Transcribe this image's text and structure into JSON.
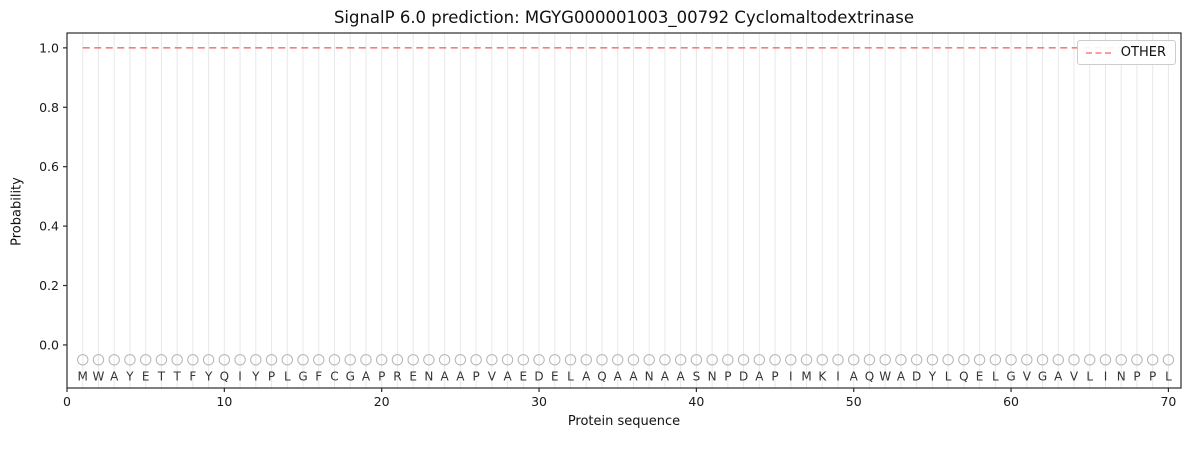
{
  "colors": {
    "other_line": "#f08080",
    "grid": "#e8e8e8",
    "marker": "#b5b5b5",
    "letters": "#333333",
    "axis": "#2b2b2b",
    "text": "#1a1a1a",
    "legend_border": "#cccccc"
  },
  "chart_data": {
    "type": "line",
    "title": "SignalP 6.0 prediction: MGYG000001003_00792 Cyclomaltodextrinase",
    "xlabel": "Protein sequence",
    "ylabel": "Probability",
    "xlim": [
      0,
      70.8
    ],
    "ylim": [
      -0.145,
      1.05
    ],
    "xticks": [
      0,
      10,
      20,
      30,
      40,
      50,
      60,
      70
    ],
    "yticks": [
      0.0,
      0.2,
      0.4,
      0.6,
      0.8,
      1.0
    ],
    "grid": "vertical line at every residue position",
    "legend": {
      "position": "upper right",
      "entries": [
        "OTHER"
      ]
    },
    "series": [
      {
        "name": "OTHER",
        "linestyle": "dashed",
        "color": "#f08080",
        "x": [
          1,
          2,
          3,
          4,
          5,
          6,
          7,
          8,
          9,
          10,
          11,
          12,
          13,
          14,
          15,
          16,
          17,
          18,
          19,
          20,
          21,
          22,
          23,
          24,
          25,
          26,
          27,
          28,
          29,
          30,
          31,
          32,
          33,
          34,
          35,
          36,
          37,
          38,
          39,
          40,
          41,
          42,
          43,
          44,
          45,
          46,
          47,
          48,
          49,
          50,
          51,
          52,
          53,
          54,
          55,
          56,
          57,
          58,
          59,
          60,
          61,
          62,
          63,
          64,
          65,
          66,
          67,
          68,
          69,
          70
        ],
        "values": [
          1,
          1,
          1,
          1,
          1,
          1,
          1,
          1,
          1,
          1,
          1,
          1,
          1,
          1,
          1,
          1,
          1,
          1,
          1,
          1,
          1,
          1,
          1,
          1,
          1,
          1,
          1,
          1,
          1,
          1,
          1,
          1,
          1,
          1,
          1,
          1,
          1,
          1,
          1,
          1,
          1,
          1,
          1,
          1,
          1,
          1,
          1,
          1,
          1,
          1,
          1,
          1,
          1,
          1,
          1,
          1,
          1,
          1,
          1,
          1,
          1,
          1,
          1,
          1,
          1,
          1,
          1,
          1,
          1,
          1
        ]
      }
    ],
    "sequence": {
      "residues": "MWAYETTFYQIYPLGFCGAPRENAAPVAEDELAQAANAASNPDAPIMKIAQWADYLQELGVGAVLINPPL",
      "marker": "circle",
      "marker_y": -0.05,
      "letter_y": -0.107
    }
  }
}
